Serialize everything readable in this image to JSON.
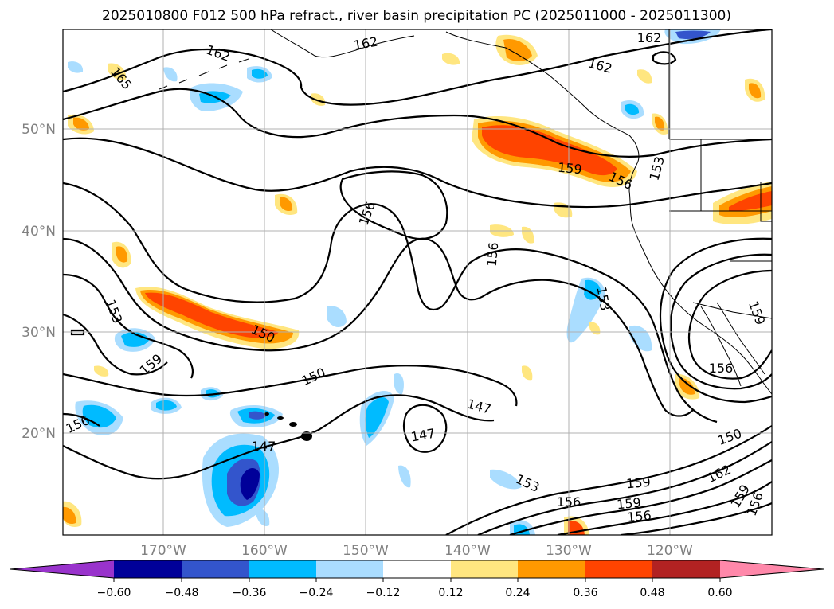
{
  "title": "2025010800 F012 500 hPa refract., river basin precipitation PC (2025011000 - 2025011300)",
  "lon_ticks": [
    "170°W",
    "160°W",
    "150°W",
    "140°W",
    "130°W",
    "120°W"
  ],
  "lat_ticks": [
    "50°N",
    "40°N",
    "30°N",
    "20°N"
  ],
  "colorbar": {
    "tick_labels": [
      "−0.60",
      "−0.48",
      "−0.36",
      "−0.24",
      "−0.12",
      "0.12",
      "0.24",
      "0.36",
      "0.48",
      "0.60"
    ],
    "colors": [
      "#9933cc",
      "#000099",
      "#3355cc",
      "#00bbff",
      "#aaddff",
      "#ffffff",
      "#ffe680",
      "#ff9900",
      "#ff4400",
      "#b22222",
      "#ff88aa"
    ]
  },
  "contour_labels": [
    "162",
    "162",
    "162",
    "165",
    "162",
    "159",
    "156",
    "153",
    "156",
    "156",
    "153",
    "150",
    "159",
    "150",
    "147",
    "147",
    "147",
    "156",
    "153",
    "159",
    "156",
    "150",
    "159",
    "162",
    "159",
    "156",
    "156",
    "159",
    "156",
    "153"
  ],
  "shade_colors": {
    "neg_light": "#aaddff",
    "neg_mid": "#00bbff",
    "neg_dark": "#3355cc",
    "neg_darkest": "#000099",
    "pos_light": "#ffe680",
    "pos_mid": "#ff9900",
    "pos_strong": "#ff4400"
  }
}
